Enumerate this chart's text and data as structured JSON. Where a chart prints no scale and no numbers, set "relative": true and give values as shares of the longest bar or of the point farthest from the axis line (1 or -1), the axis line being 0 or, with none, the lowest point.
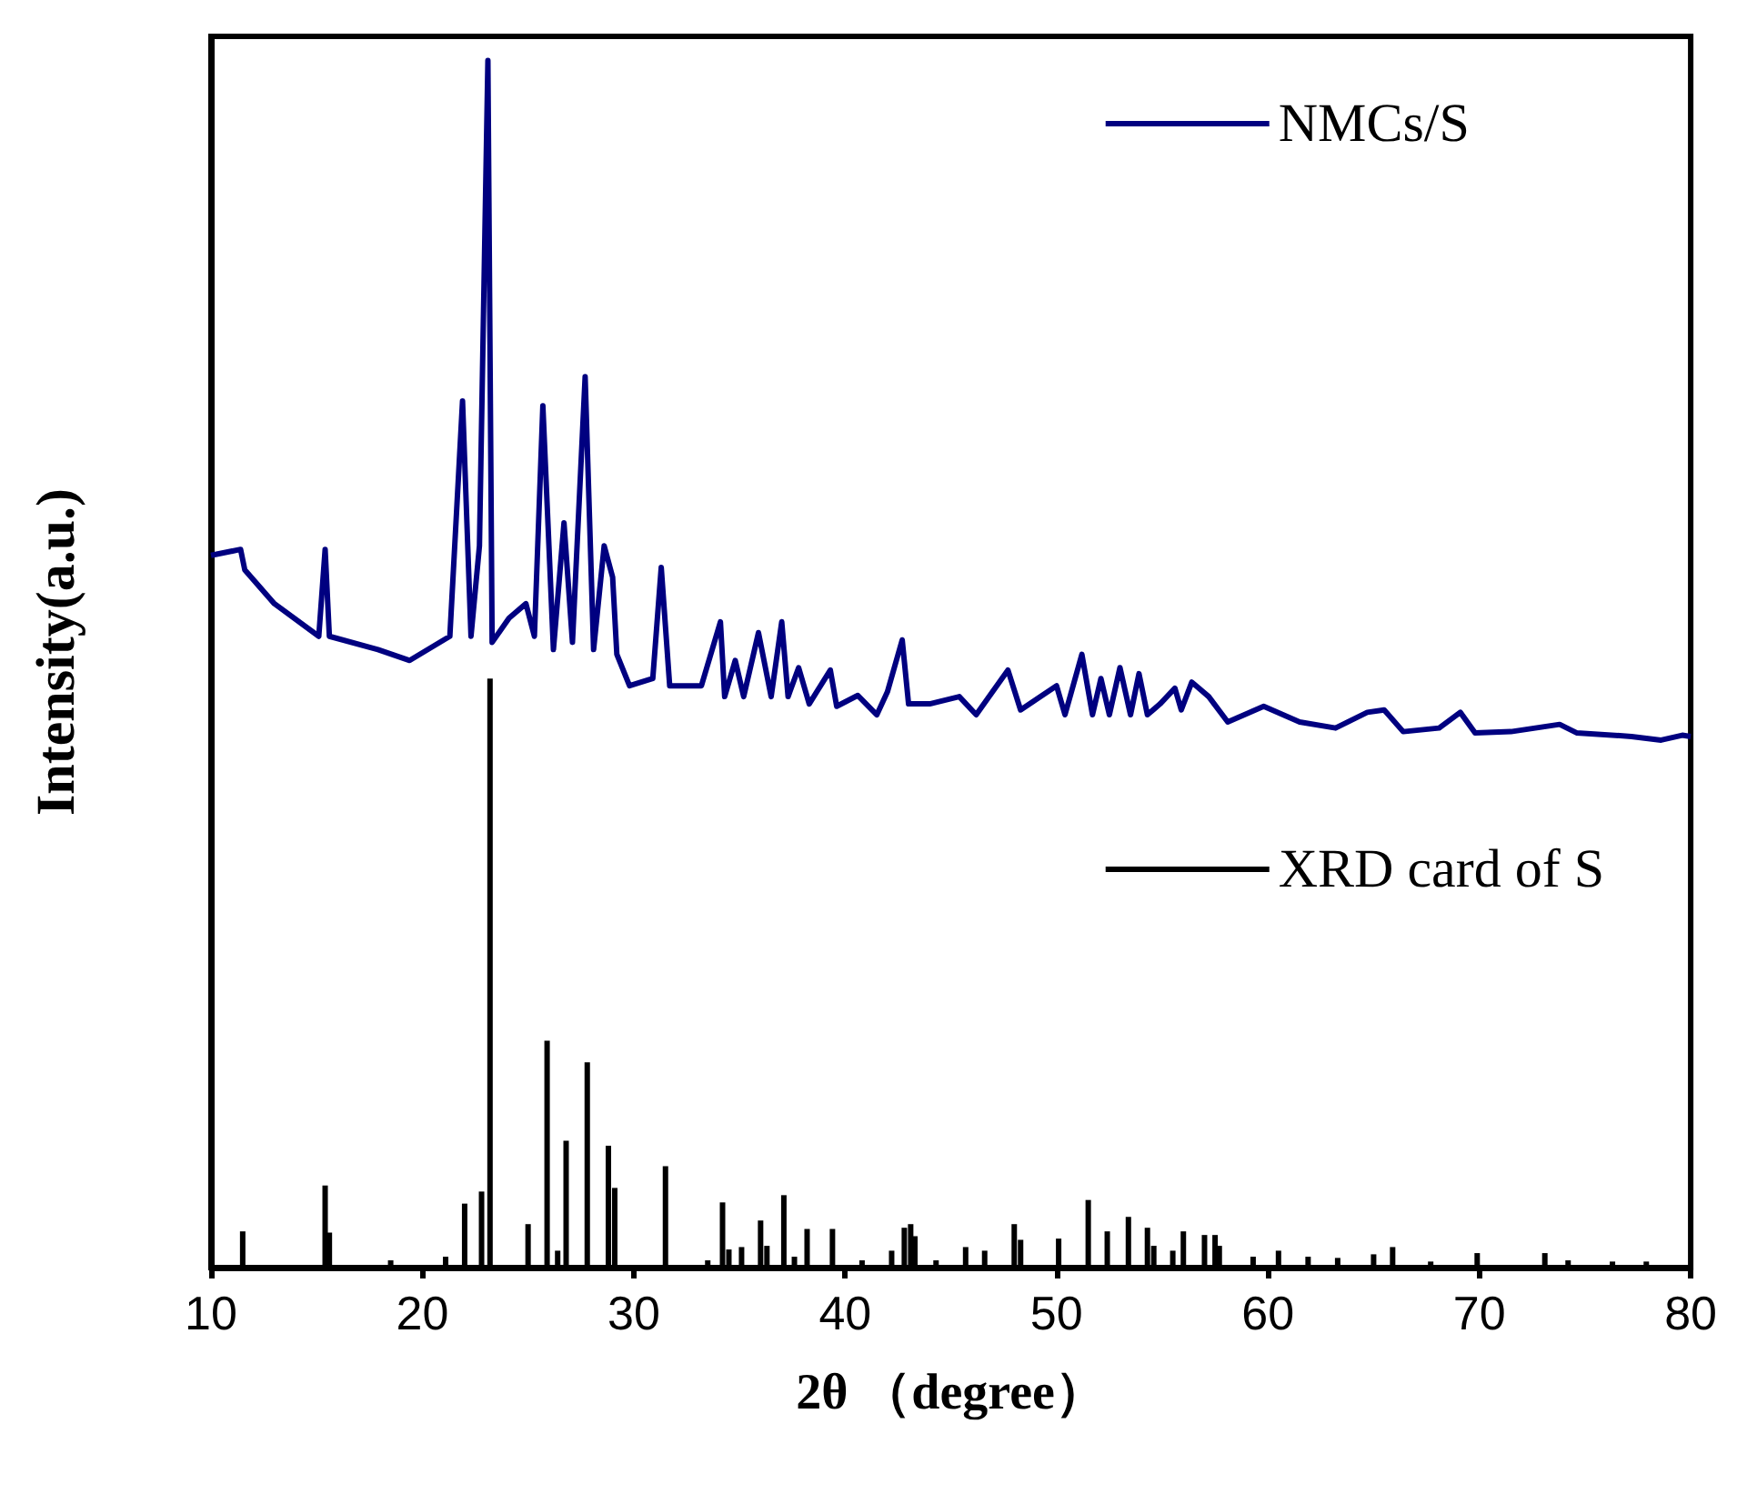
{
  "chart_data": {
    "type": "line",
    "xlabel": "2θ （degree）",
    "ylabel": "Intensity(a.u.)",
    "relative": true,
    "xlim": [
      10,
      80
    ],
    "xticks": [
      10,
      20,
      30,
      40,
      50,
      60,
      70,
      80
    ],
    "legend": "top right",
    "marker": "none",
    "line_style": "solid",
    "series": [
      {
        "name": "NMCs/S",
        "color": "#000080",
        "x": [
          10,
          11.4,
          11.6,
          13.0,
          15.1,
          15.4,
          15.6,
          17.9,
          19.4,
          21.3,
          21.9,
          22.3,
          22.7,
          23.1,
          23.3,
          24.1,
          24.9,
          25.3,
          25.7,
          26.2,
          26.7,
          27.1,
          27.7,
          28.1,
          28.6,
          29.0,
          29.2,
          29.8,
          30.9,
          31.3,
          31.7,
          33.2,
          34.1,
          34.3,
          34.8,
          35.2,
          35.9,
          36.5,
          37.0,
          37.3,
          37.8,
          38.3,
          39.3,
          39.6,
          40.6,
          41.5,
          42.0,
          42.7,
          43.0,
          44.0,
          45.4,
          46.2,
          47.7,
          48.3,
          50.0,
          50.4,
          51.2,
          51.7,
          52.1,
          52.5,
          53.0,
          53.5,
          53.9,
          54.3,
          54.9,
          55.6,
          55.9,
          56.4,
          57.2,
          58.1,
          59.8,
          61.5,
          63.2,
          64.7,
          65.5,
          66.4,
          68.1,
          69.1,
          69.8,
          71.5,
          73.8,
          74.6,
          77.2,
          78.6,
          79.6,
          80
        ],
        "values": [
          0.59,
          0.595,
          0.578,
          0.55,
          0.523,
          0.595,
          0.523,
          0.512,
          0.503,
          0.523,
          0.718,
          0.523,
          0.598,
          1.0,
          0.518,
          0.538,
          0.55,
          0.523,
          0.714,
          0.512,
          0.617,
          0.518,
          0.738,
          0.512,
          0.598,
          0.572,
          0.508,
          0.482,
          0.488,
          0.58,
          0.482,
          0.482,
          0.535,
          0.473,
          0.503,
          0.473,
          0.526,
          0.473,
          0.535,
          0.473,
          0.497,
          0.467,
          0.495,
          0.465,
          0.474,
          0.458,
          0.477,
          0.52,
          0.467,
          0.467,
          0.473,
          0.458,
          0.495,
          0.462,
          0.482,
          0.458,
          0.508,
          0.458,
          0.488,
          0.458,
          0.497,
          0.458,
          0.492,
          0.458,
          0.467,
          0.48,
          0.462,
          0.485,
          0.473,
          0.452,
          0.465,
          0.452,
          0.447,
          0.46,
          0.462,
          0.444,
          0.447,
          0.46,
          0.443,
          0.444,
          0.45,
          0.443,
          0.44,
          0.437,
          0.441,
          0.44
        ]
      },
      {
        "name": "XRD card of S",
        "type": "bar",
        "color": "#000000",
        "x": [
          11.5,
          15.4,
          15.6,
          18.5,
          21.1,
          22.0,
          22.8,
          23.2,
          25.0,
          25.9,
          26.4,
          26.8,
          27.8,
          28.8,
          29.1,
          31.5,
          33.5,
          34.2,
          34.5,
          35.1,
          36.0,
          36.3,
          37.1,
          37.6,
          38.2,
          39.4,
          40.8,
          42.2,
          42.8,
          43.1,
          43.3,
          44.3,
          45.7,
          46.6,
          48.0,
          48.3,
          50.1,
          51.5,
          52.4,
          53.4,
          54.3,
          54.6,
          55.5,
          56.0,
          57.0,
          57.5,
          57.7,
          59.3,
          60.5,
          61.9,
          63.3,
          65.0,
          65.9,
          67.7,
          69.9,
          73.1,
          74.2,
          76.3,
          77.9
        ],
        "values": [
          0.03,
          0.068,
          0.029,
          0.006,
          0.009,
          0.053,
          0.063,
          0.488,
          0.036,
          0.188,
          0.014,
          0.105,
          0.17,
          0.101,
          0.066,
          0.084,
          0.006,
          0.054,
          0.015,
          0.017,
          0.039,
          0.018,
          0.06,
          0.009,
          0.032,
          0.032,
          0.006,
          0.014,
          0.033,
          0.036,
          0.026,
          0.006,
          0.017,
          0.014,
          0.036,
          0.023,
          0.024,
          0.056,
          0.03,
          0.042,
          0.033,
          0.018,
          0.014,
          0.03,
          0.027,
          0.027,
          0.018,
          0.009,
          0.014,
          0.009,
          0.008,
          0.011,
          0.017,
          0.005,
          0.012,
          0.012,
          0.006,
          0.005,
          0.005
        ]
      }
    ]
  }
}
